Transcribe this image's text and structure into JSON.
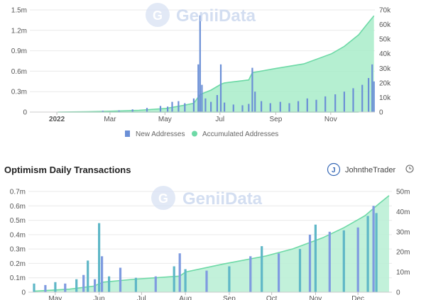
{
  "colors": {
    "new_addresses": "#6b8fd6",
    "accumulated_addresses": "#6dd9a6",
    "accumulated_fill": "#a8ecc9",
    "daily_tx_bar": "#5fb7c7",
    "daily_tx_bar_alt": "#7f9be0",
    "daily_tx_line": "#6dd9a6",
    "daily_tx_fill": "#b7efd3",
    "grid": "#e9e9e9",
    "watermark": "#c9d6ee"
  },
  "watermark": {
    "text": "GeniiData",
    "icon": "geniidata-logo-icon"
  },
  "chart_data": [
    {
      "type": "bar",
      "title": "",
      "x_ticks": [
        "2022",
        "Mar",
        "May",
        "Jul",
        "Sep",
        "Nov"
      ],
      "left_axis": {
        "ticks": [
          "1.5m",
          "1.2m",
          "0.9m",
          "0.6m",
          "0.3m",
          "0"
        ],
        "range": [
          0,
          1500000
        ]
      },
      "right_axis": {
        "ticks": [
          "70k",
          "60k",
          "50k",
          "40k",
          "30k",
          "20k",
          "10k",
          "0"
        ],
        "range": [
          0,
          70000
        ]
      },
      "legend": [
        "New Addresses",
        "Accumulated Addresses"
      ],
      "legend_position": "bottom",
      "grid": true,
      "series": [
        {
          "name": "New Addresses",
          "kind": "bar",
          "axis": "left",
          "points": [
            [
              "Feb 20",
              20000
            ],
            [
              "Mar 10",
              25000
            ],
            [
              "Mar 25",
              40000
            ],
            [
              "Apr 10",
              60000
            ],
            [
              "Apr 25",
              90000
            ],
            [
              "May 3",
              80000
            ],
            [
              "May 8",
              150000
            ],
            [
              "May 15",
              160000
            ],
            [
              "May 22",
              130000
            ],
            [
              "Jun 1",
              200000
            ],
            [
              "Jun 6",
              700000
            ],
            [
              "Jun 8",
              1420000
            ],
            [
              "Jun 10",
              400000
            ],
            [
              "Jun 14",
              200000
            ],
            [
              "Jun 20",
              150000
            ],
            [
              "Jun 27",
              250000
            ],
            [
              "Jul 1",
              700000
            ],
            [
              "Jul 5",
              140000
            ],
            [
              "Jul 15",
              110000
            ],
            [
              "Jul 25",
              100000
            ],
            [
              "Aug 1",
              120000
            ],
            [
              "Aug 5",
              650000
            ],
            [
              "Aug 8",
              300000
            ],
            [
              "Aug 15",
              160000
            ],
            [
              "Aug 25",
              130000
            ],
            [
              "Sep 5",
              150000
            ],
            [
              "Sep 15",
              130000
            ],
            [
              "Sep 25",
              160000
            ],
            [
              "Oct 5",
              200000
            ],
            [
              "Oct 15",
              180000
            ],
            [
              "Oct 25",
              230000
            ],
            [
              "Nov 5",
              260000
            ],
            [
              "Nov 15",
              300000
            ],
            [
              "Nov 25",
              350000
            ],
            [
              "Dec 5",
              400000
            ],
            [
              "Dec 12",
              500000
            ],
            [
              "Dec 16",
              700000
            ],
            [
              "Dec 18",
              450000
            ]
          ]
        },
        {
          "name": "Accumulated Addresses",
          "kind": "area",
          "axis": "right",
          "points": [
            [
              "Dec 1",
              0
            ],
            [
              "Jan 1",
              0
            ],
            [
              "Feb 1",
              200
            ],
            [
              "Mar 1",
              600
            ],
            [
              "Apr 1",
              1200
            ],
            [
              "May 1",
              2500
            ],
            [
              "May 20",
              4500
            ],
            [
              "Jun 1",
              6000
            ],
            [
              "Jun 8",
              12000
            ],
            [
              "Jun 20",
              15000
            ],
            [
              "Jul 1",
              19000
            ],
            [
              "Jul 5",
              20000
            ],
            [
              "Aug 1",
              22000
            ],
            [
              "Aug 5",
              27000
            ],
            [
              "Sep 1",
              30000
            ],
            [
              "Oct 1",
              33000
            ],
            [
              "Nov 1",
              40000
            ],
            [
              "Nov 15",
              45000
            ],
            [
              "Dec 1",
              53000
            ],
            [
              "Dec 10",
              60000
            ],
            [
              "Dec 18",
              66000
            ]
          ]
        }
      ]
    },
    {
      "type": "bar",
      "title": "Optimism Daily Transactions",
      "author": "JohntheTrader",
      "x_ticks": [
        "May",
        "Jun",
        "Jul",
        "Aug",
        "Sep",
        "Oct",
        "Nov",
        "Dec"
      ],
      "left_axis": {
        "ticks": [
          "0.7m",
          "0.6m",
          "0.5m",
          "0.4m",
          "0.3m",
          "0.2m",
          "0.1m",
          "0"
        ],
        "range": [
          0,
          700000
        ]
      },
      "right_axis": {
        "ticks": [
          "50m",
          "40m",
          "30m",
          "20m",
          "10m",
          "0"
        ],
        "range": [
          0,
          50000000
        ]
      },
      "grid": true,
      "series": [
        {
          "name": "",
          "kind": "bar",
          "axis": "left",
          "points": [
            [
              "Apr 20",
              60000
            ],
            [
              "Apr 28",
              50000
            ],
            [
              "May 5",
              70000
            ],
            [
              "May 12",
              60000
            ],
            [
              "May 20",
              90000
            ],
            [
              "May 25",
              120000
            ],
            [
              "May 28",
              220000
            ],
            [
              "Jun 2",
              90000
            ],
            [
              "Jun 5",
              480000
            ],
            [
              "Jun 7",
              250000
            ],
            [
              "Jun 12",
              110000
            ],
            [
              "Jun 20",
              170000
            ],
            [
              "Jul 1",
              100000
            ],
            [
              "Jul 15",
              110000
            ],
            [
              "Jul 28",
              180000
            ],
            [
              "Aug 1",
              270000
            ],
            [
              "Aug 5",
              160000
            ],
            [
              "Aug 20",
              150000
            ],
            [
              "Sep 5",
              180000
            ],
            [
              "Sep 20",
              250000
            ],
            [
              "Sep 28",
              320000
            ],
            [
              "Oct 10",
              270000
            ],
            [
              "Oct 25",
              300000
            ],
            [
              "Nov 1",
              400000
            ],
            [
              "Nov 5",
              470000
            ],
            [
              "Nov 15",
              420000
            ],
            [
              "Nov 25",
              430000
            ],
            [
              "Dec 5",
              450000
            ],
            [
              "Dec 12",
              530000
            ],
            [
              "Dec 16",
              600000
            ],
            [
              "Dec 18",
              550000
            ]
          ]
        },
        {
          "name": "",
          "kind": "area",
          "axis": "right",
          "points": [
            [
              "Apr 20",
              500000
            ],
            [
              "May 15",
              1500000
            ],
            [
              "Jun 1",
              3000000
            ],
            [
              "Jun 8",
              5000000
            ],
            [
              "Jul 1",
              6500000
            ],
            [
              "Aug 1",
              8000000
            ],
            [
              "Aug 5",
              10000000
            ],
            [
              "Sep 1",
              14000000
            ],
            [
              "Oct 1",
              18000000
            ],
            [
              "Oct 20",
              21500000
            ],
            [
              "Nov 10",
              27000000
            ],
            [
              "Nov 25",
              32000000
            ],
            [
              "Dec 10",
              38000000
            ],
            [
              "Dec 20",
              44000000
            ],
            [
              "Dec 27",
              48000000
            ]
          ]
        }
      ]
    }
  ]
}
